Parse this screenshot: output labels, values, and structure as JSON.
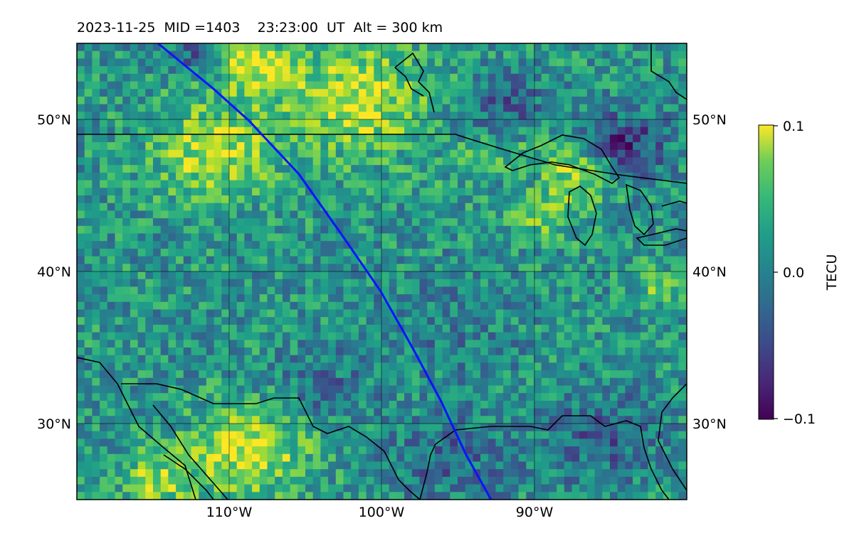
{
  "title": "2023-11-25  MID =1403    23:23:00  UT  Alt = 300 km",
  "map": {
    "lon_labels": [
      "110°W",
      "100°W",
      "90°W"
    ],
    "lat_labels": [
      "50°N",
      "40°N",
      "30°N"
    ]
  },
  "colorbar": {
    "label": "TECU",
    "ticks": [
      "0.1",
      "0.0",
      "−0.1"
    ],
    "range": [
      -0.1,
      0.1
    ],
    "colormap": "viridis"
  },
  "colors": {
    "track": "#0a14ff",
    "coastline": "#000000",
    "grid": "#000000"
  }
}
